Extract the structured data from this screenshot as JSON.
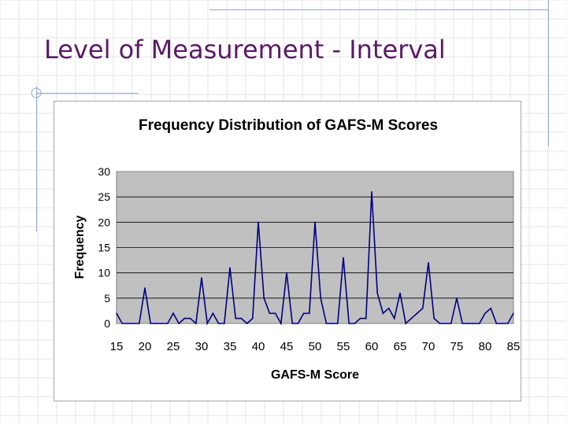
{
  "slide": {
    "title": "Level of Measurement - Interval"
  },
  "colors": {
    "title": "#5a1a66",
    "plot_bg": "#c0c0c0",
    "line": "#000080",
    "grid": "#000000",
    "decor": "#8fa8c8"
  },
  "chart_data": {
    "type": "line",
    "title": "Frequency Distribution of GAFS-M Scores",
    "xlabel": "GAFS-M Score",
    "ylabel": "Frequency",
    "xlim": [
      15,
      85
    ],
    "ylim": [
      0,
      30
    ],
    "xticks": [
      "15",
      "20",
      "25",
      "30",
      "35",
      "40",
      "45",
      "50",
      "55",
      "60",
      "65",
      "70",
      "75",
      "80",
      "85"
    ],
    "yticks": [
      "0",
      "5",
      "10",
      "15",
      "20",
      "25",
      "30"
    ],
    "grid": "horizontal",
    "legend": "none",
    "series": [
      {
        "x": [
          15,
          16,
          17,
          18,
          19,
          20,
          21,
          22,
          23,
          24,
          25,
          26,
          27,
          28,
          29,
          30,
          31,
          32,
          33,
          34,
          35,
          36,
          37,
          38,
          39,
          40,
          41,
          42,
          43,
          44,
          45,
          46,
          47,
          48,
          49,
          50,
          51,
          52,
          53,
          54,
          55,
          56,
          57,
          58,
          59,
          60,
          61,
          62,
          63,
          64,
          65,
          66,
          67,
          68,
          69,
          70,
          71,
          72,
          73,
          74,
          75,
          76,
          77,
          78,
          79,
          80,
          81,
          82,
          83,
          84,
          85
        ],
        "y": [
          2,
          0,
          0,
          0,
          0,
          7,
          0,
          0,
          0,
          0,
          2,
          0,
          1,
          1,
          0,
          9,
          0,
          2,
          0,
          0,
          11,
          1,
          1,
          0,
          1,
          20,
          5,
          2,
          2,
          0,
          10,
          0,
          0,
          2,
          2,
          20,
          5,
          0,
          0,
          0,
          13,
          0,
          0,
          1,
          1,
          26,
          6,
          2,
          3,
          1,
          6,
          0,
          1,
          2,
          3,
          12,
          1,
          0,
          0,
          0,
          5,
          0,
          0,
          0,
          0,
          2,
          3,
          0,
          0,
          0,
          2
        ]
      }
    ]
  }
}
